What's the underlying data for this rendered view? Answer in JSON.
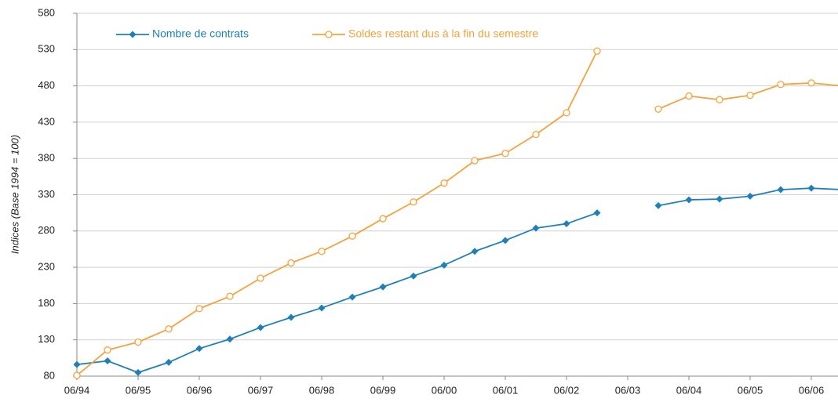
{
  "chart_data": {
    "type": "line",
    "y_label": "Indices (Base 1994 = 100)",
    "categories": [
      "06/94",
      null,
      "06/95",
      null,
      "06/96",
      null,
      "06/97",
      null,
      "06/98",
      null,
      "06/99",
      null,
      "06/00",
      null,
      "06/01",
      null,
      "06/02",
      null,
      "06/03",
      null,
      "06/04",
      null,
      "06/05",
      null,
      "06/06",
      null
    ],
    "series": [
      {
        "name": "Nombre de contrats",
        "color": "#1f80b8",
        "marker": "diamond",
        "values": [
          96,
          101,
          85,
          99,
          118,
          131,
          147,
          161,
          174,
          189,
          203,
          218,
          233,
          252,
          267,
          284,
          290,
          305,
          null,
          315,
          323,
          324,
          328,
          337,
          339,
          337
        ]
      },
      {
        "name": "Soldes restant dus à la fin du semestre",
        "color": "#f5a23c",
        "marker": "circle",
        "values": [
          81,
          116,
          127,
          145,
          173,
          190,
          215,
          236,
          252,
          273,
          297,
          320,
          346,
          377,
          387,
          413,
          443,
          528,
          null,
          448,
          466,
          461,
          467,
          482,
          484,
          480
        ]
      }
    ],
    "ylim": [
      80,
      580
    ],
    "yticks": [
      80,
      130,
      180,
      230,
      280,
      330,
      380,
      430,
      480,
      530,
      580
    ],
    "grid": true,
    "legend": "top-left"
  }
}
